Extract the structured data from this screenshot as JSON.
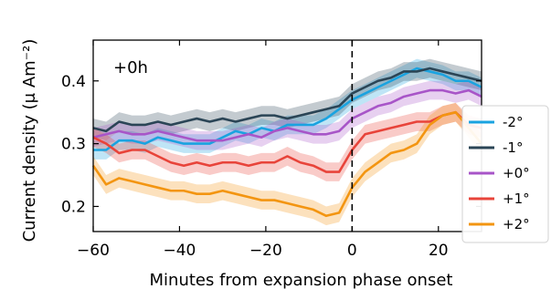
{
  "chart_data": {
    "type": "line",
    "xlabel": "Minutes from expansion phase onset",
    "ylabel": "Current density (μ Am⁻²)",
    "annotation": "+0h",
    "xlim": [
      -60,
      30
    ],
    "ylim": [
      0.16,
      0.465
    ],
    "xticks": [
      -60,
      -40,
      -20,
      0,
      20
    ],
    "xtick_labels": [
      "−60",
      "−40",
      "−20",
      "0",
      "20"
    ],
    "yticks": [
      0.2,
      0.3,
      0.4
    ],
    "ytick_labels": [
      "0.2",
      "0.3",
      "0.4"
    ],
    "onset_line_x": 0,
    "legend_position": "right",
    "band_halfwidth": 0.015,
    "series": [
      {
        "name": "-2°",
        "color": "#1aa3e0",
        "x": [
          -60,
          -57,
          -54,
          -51,
          -48,
          -45,
          -42,
          -39,
          -36,
          -33,
          -30,
          -27,
          -24,
          -21,
          -18,
          -15,
          -12,
          -9,
          -6,
          -3,
          0,
          3,
          6,
          9,
          12,
          15,
          18,
          21,
          24,
          27,
          30
        ],
        "y": [
          0.29,
          0.29,
          0.305,
          0.305,
          0.3,
          0.31,
          0.305,
          0.3,
          0.3,
          0.3,
          0.31,
          0.32,
          0.315,
          0.325,
          0.32,
          0.33,
          0.33,
          0.33,
          0.34,
          0.355,
          0.37,
          0.38,
          0.39,
          0.4,
          0.41,
          0.42,
          0.415,
          0.41,
          0.4,
          0.4,
          0.39
        ]
      },
      {
        "name": "-1°",
        "color": "#2b4556",
        "x": [
          -60,
          -57,
          -54,
          -51,
          -48,
          -45,
          -42,
          -39,
          -36,
          -33,
          -30,
          -27,
          -24,
          -21,
          -18,
          -15,
          -12,
          -9,
          -6,
          -3,
          0,
          3,
          6,
          9,
          12,
          15,
          18,
          21,
          24,
          27,
          30
        ],
        "y": [
          0.325,
          0.32,
          0.335,
          0.33,
          0.33,
          0.335,
          0.33,
          0.335,
          0.34,
          0.335,
          0.34,
          0.335,
          0.34,
          0.345,
          0.345,
          0.34,
          0.345,
          0.35,
          0.355,
          0.36,
          0.38,
          0.39,
          0.4,
          0.405,
          0.415,
          0.415,
          0.42,
          0.415,
          0.41,
          0.405,
          0.4
        ]
      },
      {
        "name": "+0°",
        "color": "#a855c8",
        "x": [
          -60,
          -57,
          -54,
          -51,
          -48,
          -45,
          -42,
          -39,
          -36,
          -33,
          -30,
          -27,
          -24,
          -21,
          -18,
          -15,
          -12,
          -9,
          -6,
          -3,
          0,
          3,
          6,
          9,
          12,
          15,
          18,
          21,
          24,
          27,
          30
        ],
        "y": [
          0.31,
          0.315,
          0.32,
          0.315,
          0.315,
          0.32,
          0.315,
          0.31,
          0.305,
          0.305,
          0.305,
          0.31,
          0.315,
          0.31,
          0.32,
          0.325,
          0.32,
          0.315,
          0.315,
          0.32,
          0.34,
          0.35,
          0.36,
          0.365,
          0.375,
          0.38,
          0.385,
          0.385,
          0.38,
          0.385,
          0.375
        ]
      },
      {
        "name": "+1°",
        "color": "#e8443a",
        "x": [
          -60,
          -57,
          -54,
          -51,
          -48,
          -45,
          -42,
          -39,
          -36,
          -33,
          -30,
          -27,
          -24,
          -21,
          -18,
          -15,
          -12,
          -9,
          -6,
          -3,
          0,
          3,
          6,
          9,
          12,
          15,
          18,
          21,
          24,
          27,
          30
        ],
        "y": [
          0.31,
          0.3,
          0.285,
          0.29,
          0.29,
          0.28,
          0.27,
          0.265,
          0.27,
          0.265,
          0.27,
          0.27,
          0.265,
          0.27,
          0.27,
          0.28,
          0.27,
          0.265,
          0.255,
          0.255,
          0.29,
          0.315,
          0.32,
          0.325,
          0.33,
          0.335,
          0.335,
          0.345,
          0.35,
          0.33,
          0.325
        ]
      },
      {
        "name": "+2°",
        "color": "#f39511",
        "x": [
          -60,
          -57,
          -54,
          -51,
          -48,
          -45,
          -42,
          -39,
          -36,
          -33,
          -30,
          -27,
          -24,
          -21,
          -18,
          -15,
          -12,
          -9,
          -6,
          -3,
          0,
          3,
          6,
          9,
          12,
          15,
          18,
          21,
          24,
          27,
          30
        ],
        "y": [
          0.265,
          0.235,
          0.245,
          0.24,
          0.235,
          0.23,
          0.225,
          0.225,
          0.22,
          0.22,
          0.225,
          0.22,
          0.215,
          0.21,
          0.21,
          0.205,
          0.2,
          0.195,
          0.185,
          0.19,
          0.23,
          0.255,
          0.27,
          0.285,
          0.29,
          0.3,
          0.33,
          0.345,
          0.35,
          0.325,
          0.3
        ]
      }
    ]
  }
}
